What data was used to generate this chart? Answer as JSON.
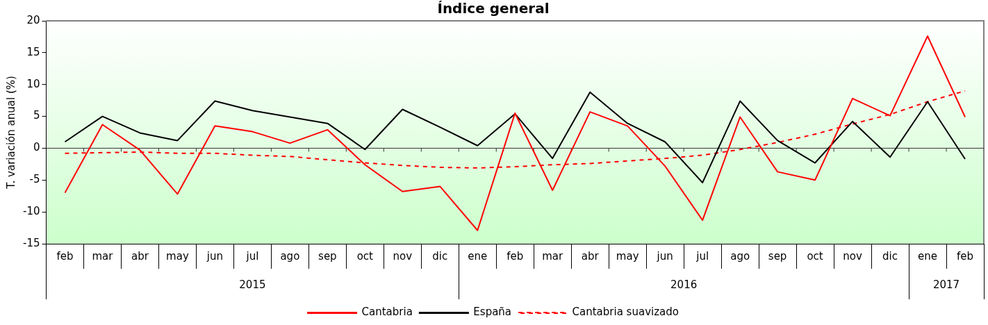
{
  "chart_data": {
    "type": "line",
    "title": "Índice general",
    "ylabel": "T. variación anual (%)",
    "categories": [
      "feb",
      "mar",
      "abr",
      "may",
      "jun",
      "jul",
      "ago",
      "sep",
      "oct",
      "nov",
      "dic",
      "ene",
      "feb",
      "mar",
      "abr",
      "may",
      "jun",
      "jul",
      "ago",
      "sep",
      "oct",
      "nov",
      "dic",
      "ene",
      "feb"
    ],
    "series": [
      {
        "name": "Cantabria",
        "color": "#ff0000",
        "line_style": "solid",
        "values": [
          -7.0,
          3.7,
          -0.3,
          -7.2,
          3.5,
          2.6,
          0.8,
          2.9,
          -2.6,
          -6.8,
          -6.0,
          -12.9,
          5.5,
          -6.6,
          5.7,
          3.5,
          -2.8,
          -11.3,
          4.9,
          -3.7,
          -5.0,
          7.8,
          5.1,
          17.6,
          4.9
        ]
      },
      {
        "name": "España",
        "color": "#000000",
        "line_style": "solid",
        "values": [
          1.0,
          5.0,
          2.4,
          1.2,
          7.4,
          5.9,
          4.9,
          3.9,
          -0.2,
          6.1,
          3.3,
          0.4,
          5.4,
          -1.6,
          8.8,
          3.9,
          1.0,
          -5.4,
          7.4,
          1.2,
          -2.3,
          4.2,
          -1.4,
          7.3,
          -1.7
        ]
      },
      {
        "name": "Cantabria suavizado",
        "color": "#ff0000",
        "line_style": "dashed",
        "values": [
          -0.8,
          -0.7,
          -0.6,
          -0.8,
          -0.8,
          -1.1,
          -1.3,
          -1.8,
          -2.3,
          -2.7,
          -3.0,
          -3.1,
          -2.9,
          -2.6,
          -2.4,
          -2.0,
          -1.6,
          -1.1,
          -0.2,
          0.9,
          2.2,
          3.8,
          5.3,
          7.3,
          9.0
        ]
      }
    ],
    "annotations": [
      "2015",
      "2016",
      "2017"
    ],
    "ref_lines": [
      {
        "axis": "y",
        "value": 0,
        "color": "#333333"
      }
    ],
    "ylim": [
      -15,
      20
    ],
    "yticks": [
      -15,
      -10,
      -5,
      0,
      5,
      10,
      15,
      20
    ],
    "grid": false,
    "legend": "bottom",
    "marker": "none"
  }
}
